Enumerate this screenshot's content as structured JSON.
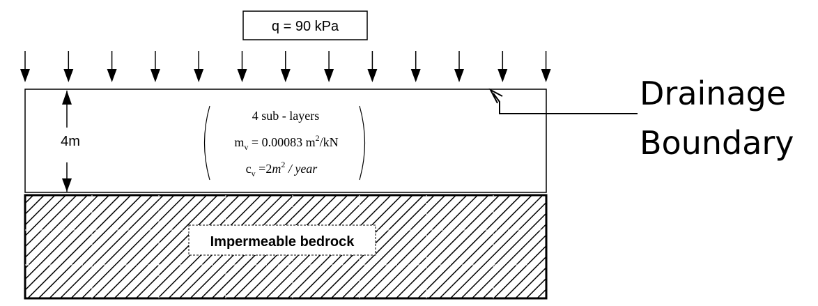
{
  "load": {
    "label": "q  = 90 kPa"
  },
  "thickness": {
    "label": "4m"
  },
  "soil_properties": {
    "line1": "4 sub - layers",
    "mv_symbol": "m",
    "mv_sub": "v",
    "mv_value": " = 0.00083 m",
    "mv_sup": "2",
    "mv_unit": "/kN",
    "cv_symbol": "c",
    "cv_sub": "v",
    "cv_eq": " =2",
    "cv_m": "m",
    "cv_sup": "2",
    "cv_unit": " / year"
  },
  "bedrock": {
    "label": "Impermeable bedrock"
  },
  "drainage": {
    "line1": "Drainage",
    "line2": "Boundary"
  }
}
